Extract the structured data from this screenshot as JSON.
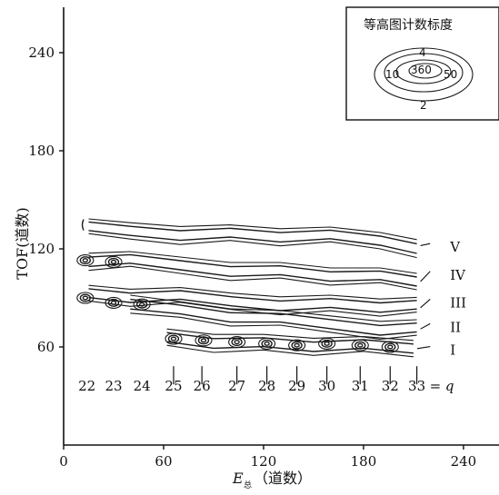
{
  "chart_data": {
    "type": "contour",
    "ylabel": "TOF(道数)",
    "xlabel_main": "E",
    "xlabel_sub": "总",
    "xlabel_unit": "（道数）",
    "xlim": [
      0,
      260
    ],
    "ylim": [
      0,
      260
    ],
    "x_ticks": [
      "0",
      "60",
      "120",
      "180",
      "240"
    ],
    "x_tick_values": [
      0,
      60,
      120,
      180,
      240
    ],
    "y_ticks": [
      "60",
      "120",
      "180",
      "240"
    ],
    "y_tick_values": [
      60,
      120,
      180,
      240
    ],
    "q_values": [
      "22",
      "23",
      "24",
      "25",
      "26",
      "27",
      "28",
      "29",
      "30",
      "31",
      "32",
      "33"
    ],
    "q_suffix": "= q",
    "q_label_x": [
      14,
      30,
      47,
      66,
      83,
      104,
      122,
      140,
      158,
      178,
      196,
      212
    ],
    "q_label_y": 36,
    "peaks": [
      {
        "q": "22",
        "x": 13,
        "y": 113,
        "band": "IV"
      },
      {
        "q": "22",
        "x": 13,
        "y": 90,
        "band": "III"
      },
      {
        "q": "23",
        "x": 30,
        "y": 112,
        "band": "IV"
      },
      {
        "q": "23",
        "x": 30,
        "y": 87,
        "band": "III"
      },
      {
        "q": "24",
        "x": 47,
        "y": 86,
        "band": "III"
      },
      {
        "q": "25",
        "x": 66,
        "y": 65,
        "band": "I"
      },
      {
        "q": "26",
        "x": 84,
        "y": 64,
        "band": "I"
      },
      {
        "q": "27",
        "x": 104,
        "y": 63,
        "band": "I"
      },
      {
        "q": "28",
        "x": 122,
        "y": 62,
        "band": "I"
      },
      {
        "q": "29",
        "x": 140,
        "y": 61,
        "band": "I"
      },
      {
        "q": "30",
        "x": 158,
        "y": 62,
        "band": "I"
      },
      {
        "q": "31",
        "x": 178,
        "y": 61,
        "band": "I"
      },
      {
        "q": "32",
        "x": 196,
        "y": 60,
        "band": "I"
      }
    ],
    "bands": [
      {
        "label": "V",
        "line": [
          [
            15,
            132
          ],
          [
            40,
            131
          ],
          [
            70,
            130
          ],
          [
            100,
            129
          ],
          [
            130,
            128
          ],
          [
            160,
            127
          ],
          [
            190,
            125
          ],
          [
            212,
            122
          ]
        ],
        "label_pos": [
          232,
          121
        ]
      },
      {
        "label": "IV",
        "line": [
          [
            15,
            113
          ],
          [
            40,
            112
          ],
          [
            70,
            110
          ],
          [
            100,
            108
          ],
          [
            130,
            106
          ],
          [
            160,
            104
          ],
          [
            190,
            102
          ],
          [
            212,
            100
          ]
        ],
        "label_pos": [
          232,
          104
        ]
      },
      {
        "label": "III",
        "line": [
          [
            15,
            92
          ],
          [
            40,
            91
          ],
          [
            70,
            90
          ],
          [
            100,
            88
          ],
          [
            130,
            87
          ],
          [
            160,
            86
          ],
          [
            190,
            85
          ],
          [
            212,
            84
          ]
        ],
        "label_pos": [
          232,
          87
        ]
      },
      {
        "label": "II",
        "line": [
          [
            40,
            88
          ],
          [
            70,
            82
          ],
          [
            100,
            79
          ],
          [
            130,
            76
          ],
          [
            160,
            74
          ],
          [
            190,
            72
          ],
          [
            212,
            71
          ]
        ],
        "label_pos": [
          232,
          72
        ]
      },
      {
        "label": "I",
        "line": [
          [
            62,
            66
          ],
          [
            90,
            64
          ],
          [
            120,
            62
          ],
          [
            150,
            61
          ],
          [
            180,
            60
          ],
          [
            210,
            59
          ]
        ],
        "label_pos": [
          232,
          58
        ]
      }
    ]
  },
  "legend": {
    "title": "等高图计数标度",
    "levels": [
      "4",
      "360",
      "10",
      "50",
      "2"
    ]
  }
}
